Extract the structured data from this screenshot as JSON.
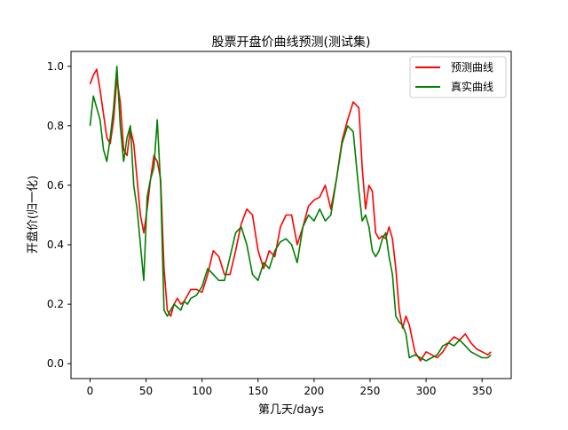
{
  "chart_data": {
    "type": "line",
    "title": "股票开盘价曲线预测(测试集)",
    "xlabel": "第几天/days",
    "ylabel": "开盘价(归一化)",
    "xlim": [
      -17,
      376
    ],
    "ylim": [
      -0.05,
      1.05
    ],
    "x_ticks": [
      0,
      50,
      100,
      150,
      200,
      250,
      300,
      350
    ],
    "y_ticks": [
      0.0,
      0.2,
      0.4,
      0.6,
      0.8,
      1.0
    ],
    "x_tick_labels": [
      "0",
      "50",
      "100",
      "150",
      "200",
      "250",
      "300",
      "350"
    ],
    "y_tick_labels": [
      "0.0",
      "0.2",
      "0.4",
      "0.6",
      "0.8",
      "1.0"
    ],
    "grid": false,
    "legend_position": "top-right",
    "series": [
      {
        "name": "预测曲线",
        "color": "#ff0000",
        "x": [
          0,
          3,
          6,
          9,
          12,
          15,
          18,
          21,
          24,
          27,
          30,
          33,
          36,
          39,
          42,
          45,
          48,
          51,
          54,
          57,
          60,
          63,
          66,
          69,
          72,
          75,
          78,
          81,
          84,
          87,
          90,
          95,
          100,
          105,
          110,
          115,
          120,
          125,
          130,
          135,
          140,
          145,
          150,
          155,
          160,
          165,
          170,
          175,
          180,
          185,
          190,
          195,
          200,
          205,
          210,
          215,
          220,
          225,
          230,
          235,
          240,
          243,
          246,
          249,
          252,
          255,
          258,
          261,
          264,
          267,
          270,
          273,
          276,
          279,
          282,
          285,
          290,
          295,
          300,
          305,
          310,
          315,
          320,
          325,
          330,
          335,
          340,
          345,
          350,
          355,
          358
        ],
        "values": [
          0.94,
          0.97,
          0.99,
          0.92,
          0.84,
          0.76,
          0.74,
          0.82,
          0.96,
          0.88,
          0.72,
          0.7,
          0.79,
          0.74,
          0.62,
          0.5,
          0.44,
          0.52,
          0.62,
          0.7,
          0.68,
          0.62,
          0.32,
          0.18,
          0.16,
          0.2,
          0.22,
          0.2,
          0.21,
          0.23,
          0.25,
          0.25,
          0.24,
          0.3,
          0.38,
          0.36,
          0.3,
          0.3,
          0.38,
          0.47,
          0.52,
          0.5,
          0.38,
          0.32,
          0.38,
          0.36,
          0.46,
          0.5,
          0.5,
          0.4,
          0.46,
          0.53,
          0.55,
          0.56,
          0.6,
          0.52,
          0.62,
          0.75,
          0.82,
          0.88,
          0.86,
          0.66,
          0.52,
          0.6,
          0.58,
          0.44,
          0.42,
          0.43,
          0.42,
          0.46,
          0.42,
          0.32,
          0.18,
          0.12,
          0.16,
          0.13,
          0.04,
          0.01,
          0.04,
          0.03,
          0.02,
          0.04,
          0.07,
          0.09,
          0.08,
          0.1,
          0.07,
          0.05,
          0.04,
          0.03,
          0.04
        ]
      },
      {
        "name": "真实曲线",
        "color": "#008000",
        "x": [
          0,
          3,
          6,
          9,
          12,
          15,
          18,
          21,
          24,
          27,
          30,
          33,
          36,
          39,
          42,
          45,
          48,
          51,
          54,
          57,
          60,
          63,
          66,
          69,
          72,
          75,
          78,
          81,
          84,
          87,
          90,
          95,
          100,
          105,
          110,
          115,
          120,
          125,
          130,
          135,
          140,
          145,
          150,
          155,
          160,
          165,
          170,
          175,
          180,
          185,
          190,
          195,
          200,
          205,
          210,
          215,
          220,
          225,
          230,
          235,
          240,
          243,
          246,
          249,
          252,
          255,
          258,
          261,
          264,
          267,
          270,
          273,
          276,
          279,
          282,
          285,
          290,
          295,
          300,
          305,
          310,
          315,
          320,
          325,
          330,
          335,
          340,
          345,
          350,
          355,
          358
        ],
        "values": [
          0.8,
          0.9,
          0.86,
          0.82,
          0.72,
          0.68,
          0.76,
          0.86,
          1.0,
          0.8,
          0.68,
          0.76,
          0.8,
          0.6,
          0.52,
          0.4,
          0.28,
          0.56,
          0.62,
          0.66,
          0.82,
          0.6,
          0.18,
          0.16,
          0.18,
          0.2,
          0.19,
          0.18,
          0.21,
          0.2,
          0.22,
          0.23,
          0.26,
          0.32,
          0.3,
          0.28,
          0.28,
          0.36,
          0.44,
          0.46,
          0.4,
          0.3,
          0.28,
          0.34,
          0.32,
          0.38,
          0.41,
          0.42,
          0.4,
          0.34,
          0.46,
          0.5,
          0.48,
          0.52,
          0.48,
          0.5,
          0.62,
          0.74,
          0.8,
          0.78,
          0.58,
          0.48,
          0.5,
          0.46,
          0.38,
          0.36,
          0.38,
          0.42,
          0.44,
          0.36,
          0.3,
          0.16,
          0.14,
          0.13,
          0.1,
          0.02,
          0.03,
          0.02,
          0.01,
          0.02,
          0.03,
          0.06,
          0.07,
          0.06,
          0.08,
          0.06,
          0.04,
          0.03,
          0.02,
          0.02,
          0.03
        ]
      }
    ]
  }
}
